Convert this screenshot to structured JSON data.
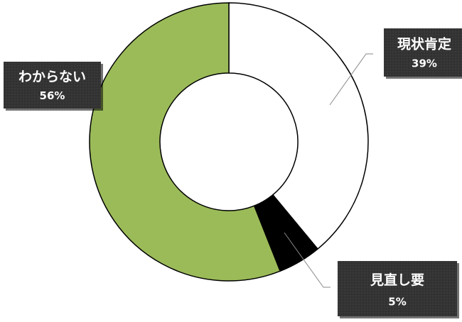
{
  "chart_data": {
    "type": "pie",
    "variant": "donut",
    "title": "",
    "slices": [
      {
        "category": "現状肯定",
        "value": 39,
        "percent_label": "39%",
        "color": "#ffffff"
      },
      {
        "category": "見直し要",
        "value": 5,
        "percent_label": "5%",
        "color": "#000000"
      },
      {
        "category": "わからない",
        "value": 56,
        "percent_label": "56%",
        "color": "#9bbb59"
      }
    ],
    "legend": "none",
    "label_style": "callout boxes, dark background, white bold text"
  }
}
